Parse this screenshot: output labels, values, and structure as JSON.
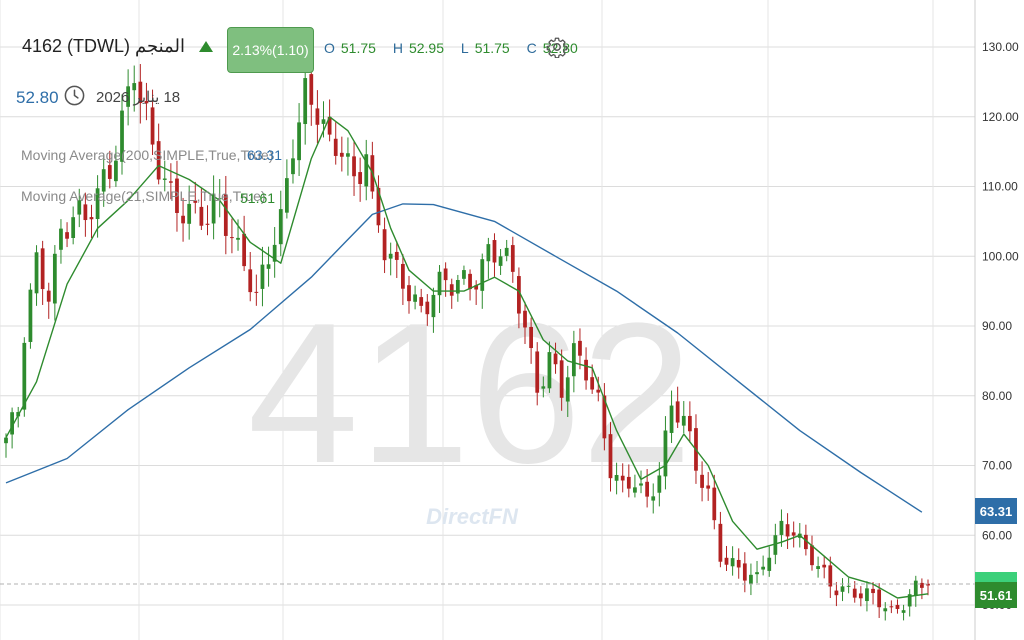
{
  "header": {
    "symbol_title": "4162  (TDWL)  المنجم",
    "change_badge": "2.13%(1.10)",
    "ohlc": {
      "o_label": "O",
      "o": "51.75",
      "h_label": "H",
      "h": "52.95",
      "l_label": "L",
      "l": "51.75",
      "c_label": "C",
      "c": "52.80"
    },
    "last_price": "52.80",
    "date": "18 يناير 2026",
    "settings_icon": "gear-icon",
    "clock_icon": "clock-icon",
    "up_icon": "triangle-up-icon"
  },
  "indicators": {
    "ma200": {
      "label": "Moving Average(200,SIMPLE,True,True)",
      "value": "63.31"
    },
    "ma21": {
      "label": "Moving Average(21,SIMPLE,True,True)",
      "value": "51.61"
    }
  },
  "watermark": {
    "symbol": "4162",
    "brand": "DirectFN"
  },
  "colors": {
    "up": "#2e8b2e",
    "down": "#b22222",
    "ma200": "#2e6ea8",
    "ma21": "#2e8b2e",
    "grid": "#dcdcdc",
    "badge": "#7fbf7f",
    "last_tag": "#3cd07a"
  },
  "chart_data": {
    "type": "candlestick",
    "y_axis_side": "right",
    "ylim": [
      46,
      136
    ],
    "y_ticks": [
      "130.00",
      "120.00",
      "110.00",
      "100.00",
      "90.00",
      "80.00",
      "70.00",
      "60.00",
      "50.00"
    ],
    "last_price": 52.8,
    "price_tags": [
      "63.31",
      "51.61"
    ],
    "x_index_range": [
      0,
      151
    ],
    "price_path": [
      {
        "i": 0,
        "v": 74
      },
      {
        "i": 2,
        "v": 77
      },
      {
        "i": 3,
        "v": 88
      },
      {
        "i": 5,
        "v": 99
      },
      {
        "i": 7,
        "v": 96
      },
      {
        "i": 9,
        "v": 104
      },
      {
        "i": 11,
        "v": 105
      },
      {
        "i": 13,
        "v": 104
      },
      {
        "i": 15,
        "v": 109
      },
      {
        "i": 17,
        "v": 114
      },
      {
        "i": 19,
        "v": 120
      },
      {
        "i": 21,
        "v": 126
      },
      {
        "i": 22,
        "v": 121
      },
      {
        "i": 24,
        "v": 115
      },
      {
        "i": 27,
        "v": 110
      },
      {
        "i": 30,
        "v": 106
      },
      {
        "i": 33,
        "v": 104
      },
      {
        "i": 35,
        "v": 108
      },
      {
        "i": 37,
        "v": 104
      },
      {
        "i": 39,
        "v": 100
      },
      {
        "i": 41,
        "v": 93
      },
      {
        "i": 43,
        "v": 99
      },
      {
        "i": 45,
        "v": 105
      },
      {
        "i": 47,
        "v": 118
      },
      {
        "i": 49,
        "v": 124
      },
      {
        "i": 51,
        "v": 120
      },
      {
        "i": 53,
        "v": 114
      },
      {
        "i": 55,
        "v": 116
      },
      {
        "i": 57,
        "v": 112
      },
      {
        "i": 59,
        "v": 116
      },
      {
        "i": 60,
        "v": 107
      },
      {
        "i": 62,
        "v": 100
      },
      {
        "i": 64,
        "v": 97
      },
      {
        "i": 66,
        "v": 96
      },
      {
        "i": 68,
        "v": 93
      },
      {
        "i": 70,
        "v": 95
      },
      {
        "i": 73,
        "v": 95
      },
      {
        "i": 76,
        "v": 97
      },
      {
        "i": 79,
        "v": 101
      },
      {
        "i": 81,
        "v": 100
      },
      {
        "i": 83,
        "v": 96
      },
      {
        "i": 85,
        "v": 90
      },
      {
        "i": 87,
        "v": 82
      },
      {
        "i": 89,
        "v": 86
      },
      {
        "i": 91,
        "v": 80
      },
      {
        "i": 93,
        "v": 85
      },
      {
        "i": 95,
        "v": 84
      },
      {
        "i": 97,
        "v": 80
      },
      {
        "i": 99,
        "v": 70
      },
      {
        "i": 101,
        "v": 66
      },
      {
        "i": 103,
        "v": 67
      },
      {
        "i": 105,
        "v": 65
      },
      {
        "i": 107,
        "v": 70
      },
      {
        "i": 109,
        "v": 79
      },
      {
        "i": 111,
        "v": 76
      },
      {
        "i": 113,
        "v": 69
      },
      {
        "i": 115,
        "v": 66
      },
      {
        "i": 117,
        "v": 58
      },
      {
        "i": 119,
        "v": 56
      },
      {
        "i": 121,
        "v": 54
      },
      {
        "i": 123,
        "v": 53
      },
      {
        "i": 125,
        "v": 58
      },
      {
        "i": 127,
        "v": 62
      },
      {
        "i": 129,
        "v": 61
      },
      {
        "i": 131,
        "v": 57
      },
      {
        "i": 133,
        "v": 55
      },
      {
        "i": 135,
        "v": 53
      },
      {
        "i": 137,
        "v": 53
      },
      {
        "i": 139,
        "v": 52
      },
      {
        "i": 141,
        "v": 51
      },
      {
        "i": 143,
        "v": 50
      },
      {
        "i": 145,
        "v": 49
      },
      {
        "i": 147,
        "v": 51
      },
      {
        "i": 149,
        "v": 52.8
      },
      {
        "i": 151,
        "v": 52.8
      }
    ],
    "series": [
      {
        "name": "Moving Average(200,SIMPLE,True,True)",
        "color": "#2e6ea8",
        "points": [
          {
            "i": 0,
            "v": 67.5
          },
          {
            "i": 10,
            "v": 71
          },
          {
            "i": 20,
            "v": 78
          },
          {
            "i": 30,
            "v": 84
          },
          {
            "i": 40,
            "v": 89.5
          },
          {
            "i": 50,
            "v": 97
          },
          {
            "i": 55,
            "v": 101.5
          },
          {
            "i": 60,
            "v": 106
          },
          {
            "i": 65,
            "v": 107.5
          },
          {
            "i": 70,
            "v": 107.4
          },
          {
            "i": 80,
            "v": 105
          },
          {
            "i": 90,
            "v": 100
          },
          {
            "i": 100,
            "v": 95
          },
          {
            "i": 110,
            "v": 89
          },
          {
            "i": 120,
            "v": 82
          },
          {
            "i": 130,
            "v": 75
          },
          {
            "i": 140,
            "v": 69
          },
          {
            "i": 150,
            "v": 63.31
          }
        ]
      },
      {
        "name": "Moving Average(21,SIMPLE,True,True)",
        "color": "#2e8b2e",
        "points": [
          {
            "i": 0,
            "v": 74
          },
          {
            "i": 5,
            "v": 82
          },
          {
            "i": 10,
            "v": 96
          },
          {
            "i": 15,
            "v": 104
          },
          {
            "i": 20,
            "v": 108
          },
          {
            "i": 25,
            "v": 113
          },
          {
            "i": 30,
            "v": 111
          },
          {
            "i": 35,
            "v": 108
          },
          {
            "i": 40,
            "v": 102
          },
          {
            "i": 45,
            "v": 99
          },
          {
            "i": 50,
            "v": 114
          },
          {
            "i": 53,
            "v": 120
          },
          {
            "i": 56,
            "v": 118
          },
          {
            "i": 60,
            "v": 112
          },
          {
            "i": 63,
            "v": 104
          },
          {
            "i": 66,
            "v": 98
          },
          {
            "i": 70,
            "v": 95
          },
          {
            "i": 75,
            "v": 95
          },
          {
            "i": 80,
            "v": 97
          },
          {
            "i": 84,
            "v": 95
          },
          {
            "i": 88,
            "v": 88
          },
          {
            "i": 92,
            "v": 85
          },
          {
            "i": 96,
            "v": 84
          },
          {
            "i": 100,
            "v": 75
          },
          {
            "i": 104,
            "v": 68
          },
          {
            "i": 108,
            "v": 70
          },
          {
            "i": 111,
            "v": 74.5
          },
          {
            "i": 115,
            "v": 70
          },
          {
            "i": 119,
            "v": 62
          },
          {
            "i": 123,
            "v": 58
          },
          {
            "i": 127,
            "v": 59
          },
          {
            "i": 130,
            "v": 60
          },
          {
            "i": 134,
            "v": 57
          },
          {
            "i": 138,
            "v": 54
          },
          {
            "i": 142,
            "v": 53
          },
          {
            "i": 146,
            "v": 51
          },
          {
            "i": 151,
            "v": 51.61
          }
        ]
      }
    ]
  }
}
